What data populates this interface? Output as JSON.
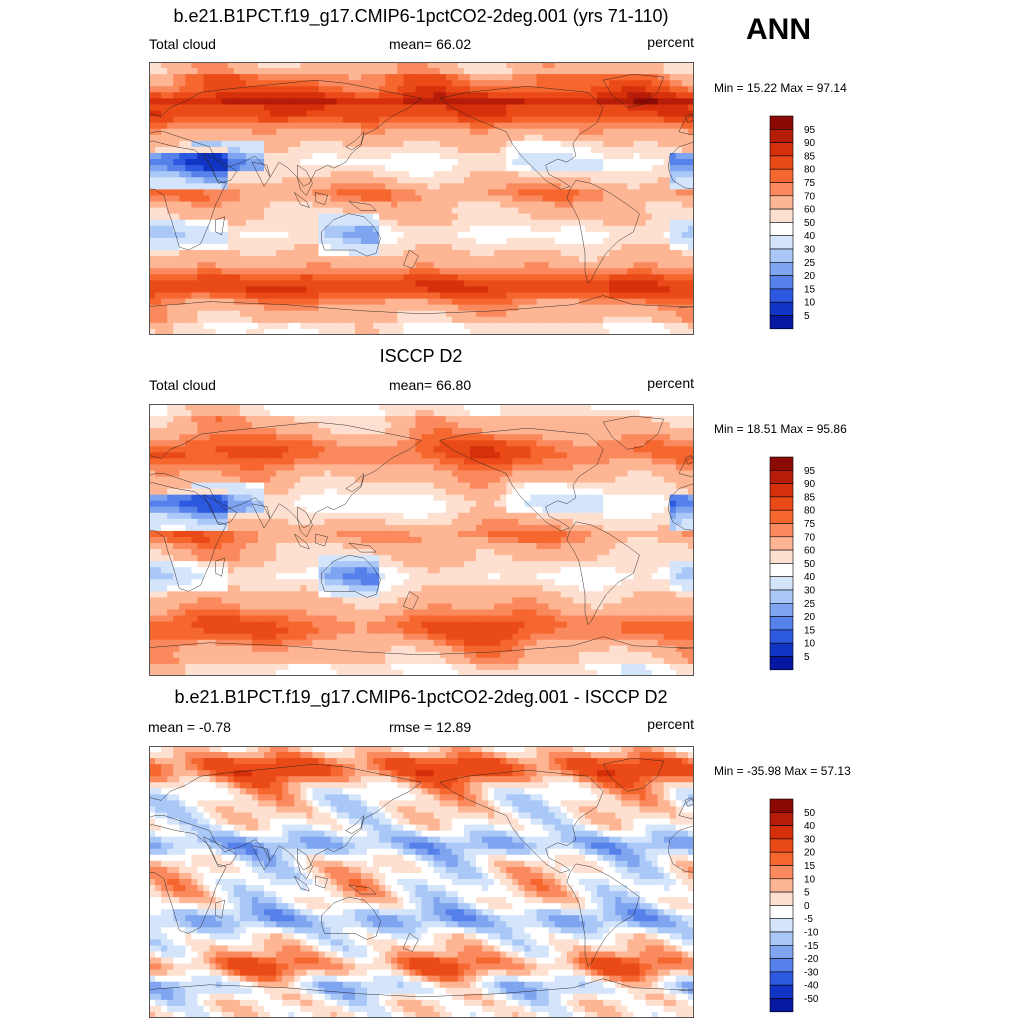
{
  "season": "ANN",
  "panels": [
    {
      "title": "b.e21.B1PCT.f19_g17.CMIP6-1pctCO2-2deg.001 (yrs 71-110)",
      "left_label": "Total cloud",
      "center_label": "mean=  66.02",
      "units": "percent",
      "minmax": "Min =  15.22 Max =  97.14",
      "colorbar": {
        "labels": [
          "95",
          "90",
          "85",
          "80",
          "75",
          "70",
          "60",
          "50",
          "40",
          "30",
          "25",
          "20",
          "15",
          "10",
          "5"
        ],
        "colors": [
          "#8b0a06",
          "#b51d08",
          "#d5300b",
          "#ea4a18",
          "#f5672f",
          "#fa8a5e",
          "#fdb593",
          "#fde0d0",
          "#ffffff",
          "#d4e4fb",
          "#aac8f7",
          "#7fa4f0",
          "#5681ea",
          "#2d58e0",
          "#1035c4",
          "#0618a0"
        ]
      },
      "lon_label": "Total cloud",
      "map_name": "model-total-cloud-map"
    },
    {
      "title": "ISCCP D2",
      "left_label": "Total cloud",
      "center_label": "mean=  66.80",
      "units": "percent",
      "minmax": "Min =  18.51 Max =  95.86",
      "colorbar": {
        "labels": [
          "95",
          "90",
          "85",
          "80",
          "75",
          "70",
          "60",
          "50",
          "40",
          "30",
          "25",
          "20",
          "15",
          "10",
          "5"
        ],
        "colors": [
          "#8b0a06",
          "#b51d08",
          "#d5300b",
          "#ea4a18",
          "#f5672f",
          "#fa8a5e",
          "#fdb593",
          "#fde0d0",
          "#ffffff",
          "#d4e4fb",
          "#aac8f7",
          "#7fa4f0",
          "#5681ea",
          "#2d58e0",
          "#1035c4",
          "#0618a0"
        ]
      },
      "map_name": "obs-total-cloud-map"
    },
    {
      "title": "b.e21.B1PCT.f19_g17.CMIP6-1pctCO2-2deg.001 - ISCCP D2",
      "left_label": "mean =  -0.78",
      "center_label": "rmse =  12.89",
      "units": "percent",
      "minmax": "Min = -35.98 Max =  57.13",
      "colorbar": {
        "labels": [
          "50",
          "40",
          "30",
          "20",
          "15",
          "10",
          "5",
          "0",
          "-5",
          "-10",
          "-15",
          "-20",
          "-30",
          "-40",
          "-50"
        ],
        "colors": [
          "#8b0a06",
          "#b51d08",
          "#d5300b",
          "#ea4a18",
          "#f5672f",
          "#fa8a5e",
          "#fdb593",
          "#fde0d0",
          "#ffffff",
          "#d4e4fb",
          "#aac8f7",
          "#7fa4f0",
          "#5681ea",
          "#2d58e0",
          "#1035c4",
          "#0618a0"
        ]
      },
      "map_name": "difference-map"
    }
  ]
}
